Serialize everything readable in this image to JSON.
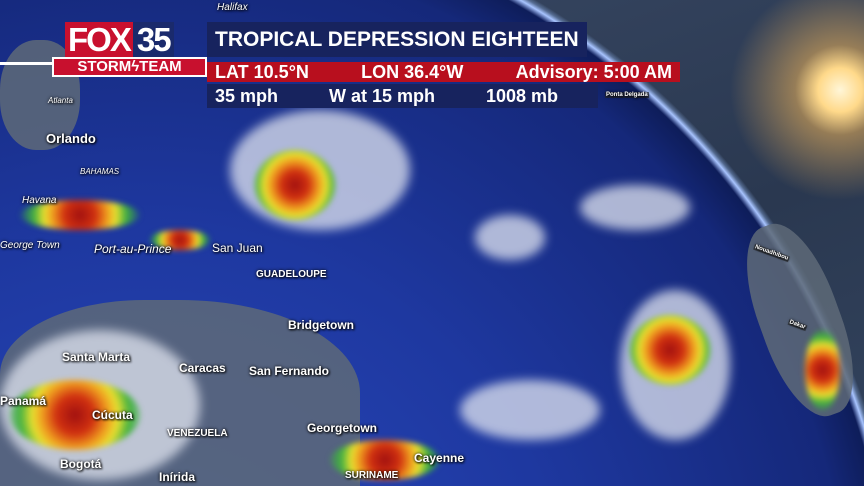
{
  "branding": {
    "station": "FOX",
    "channel": "35",
    "team": "STORM",
    "team2": "TEAM"
  },
  "storm": {
    "title": "TROPICAL DEPRESSION EIGHTEEN",
    "lat": "LAT 10.5°N",
    "lon": "LON 36.4°W",
    "advisory": "Advisory: 5:00 AM",
    "wind": "35 mph",
    "movement": "W at 15 mph",
    "pressure": "1008 mb"
  },
  "map_labels": {
    "halifax": "Halifax",
    "atlanta": "Atlanta",
    "orlando": "Orlando",
    "bahamas": "BAHAMAS",
    "havana": "Havana",
    "george_town": "George Town",
    "port_au_prince": "Port-au-Prince",
    "san_juan": "San Juan",
    "guadeloupe": "GUADELOUPE",
    "bridgetown": "Bridgetown",
    "caracas": "Caracas",
    "san_fernando": "San Fernando",
    "santa_marta": "Santa Marta",
    "panama": "Panamá",
    "cucuta": "Cúcuta",
    "venezuela": "VENEZUELA",
    "georgetown": "Georgetown",
    "bogota": "Bogotá",
    "inirida": "Inírida",
    "suriname": "SURINAME",
    "cayenne": "Cayenne",
    "ponta_delgada": "Ponta Delgada",
    "nouadhibou": "Nouadhibou",
    "dakar": "Dakar"
  },
  "colors": {
    "brand_red": "#c8102e",
    "bar_navy": "#17235e",
    "advisory_red": "#b80f1e"
  }
}
